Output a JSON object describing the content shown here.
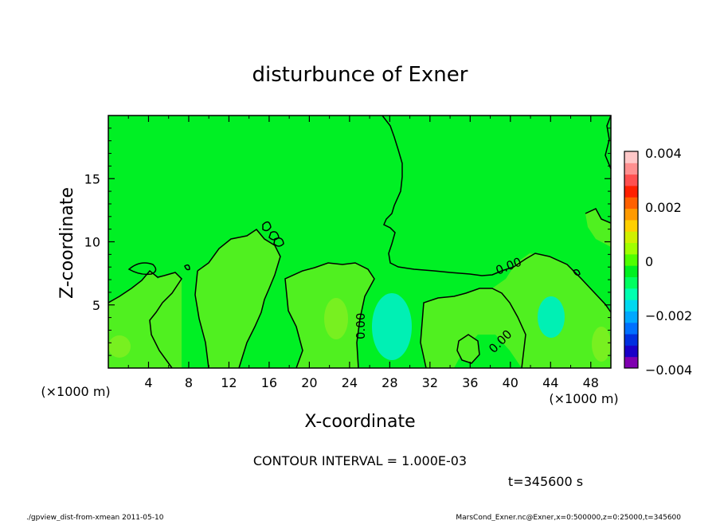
{
  "chart_data": {
    "type": "heatmap",
    "title": "disturbunce of Exner",
    "xlabel": "X-coordinate",
    "ylabel": "Z-coordinate",
    "x_unit": "(×1000 m)",
    "y_unit": "(×1000 m)",
    "xlim": [
      0,
      50
    ],
    "ylim": [
      0,
      20
    ],
    "x_ticks": [
      "4",
      "8",
      "12",
      "16",
      "20",
      "24",
      "28",
      "32",
      "36",
      "40",
      "44",
      "48"
    ],
    "y_ticks": [
      "5",
      "10",
      "15"
    ],
    "contour_labels": [
      "0.00",
      "0.00",
      "0.00"
    ],
    "colorbar": {
      "min": -0.004,
      "max": 0.004,
      "ticks": [
        "0.004",
        "0.002",
        "0",
        "−0.002",
        "−0.004"
      ],
      "colors": [
        "#7f00b0",
        "#1a00c8",
        "#0030e0",
        "#0070ff",
        "#00a8ff",
        "#00d8f0",
        "#00ffb0",
        "#00ff60",
        "#00f020",
        "#50ff00",
        "#a0ff00",
        "#d0f000",
        "#ffd000",
        "#ff9a00",
        "#ff6000",
        "#ff2000",
        "#ff5050",
        "#ff9090",
        "#ffc8c8"
      ]
    },
    "field_colors": {
      "background": "#00f024",
      "slightly_positive": "#50f020",
      "positive": "#78f020",
      "slightly_negative": "#00f096",
      "negative": "#00f0b4"
    }
  },
  "contour_interval": "CONTOUR INTERVAL = 1.000E-03",
  "time_label": "t=345600 s",
  "footer_left": "./gpview_dist-from-xmean  2011-05-10",
  "footer_right": "MarsCond_Exner.nc@Exner,x=0:500000,z=0:25000,t=345600"
}
